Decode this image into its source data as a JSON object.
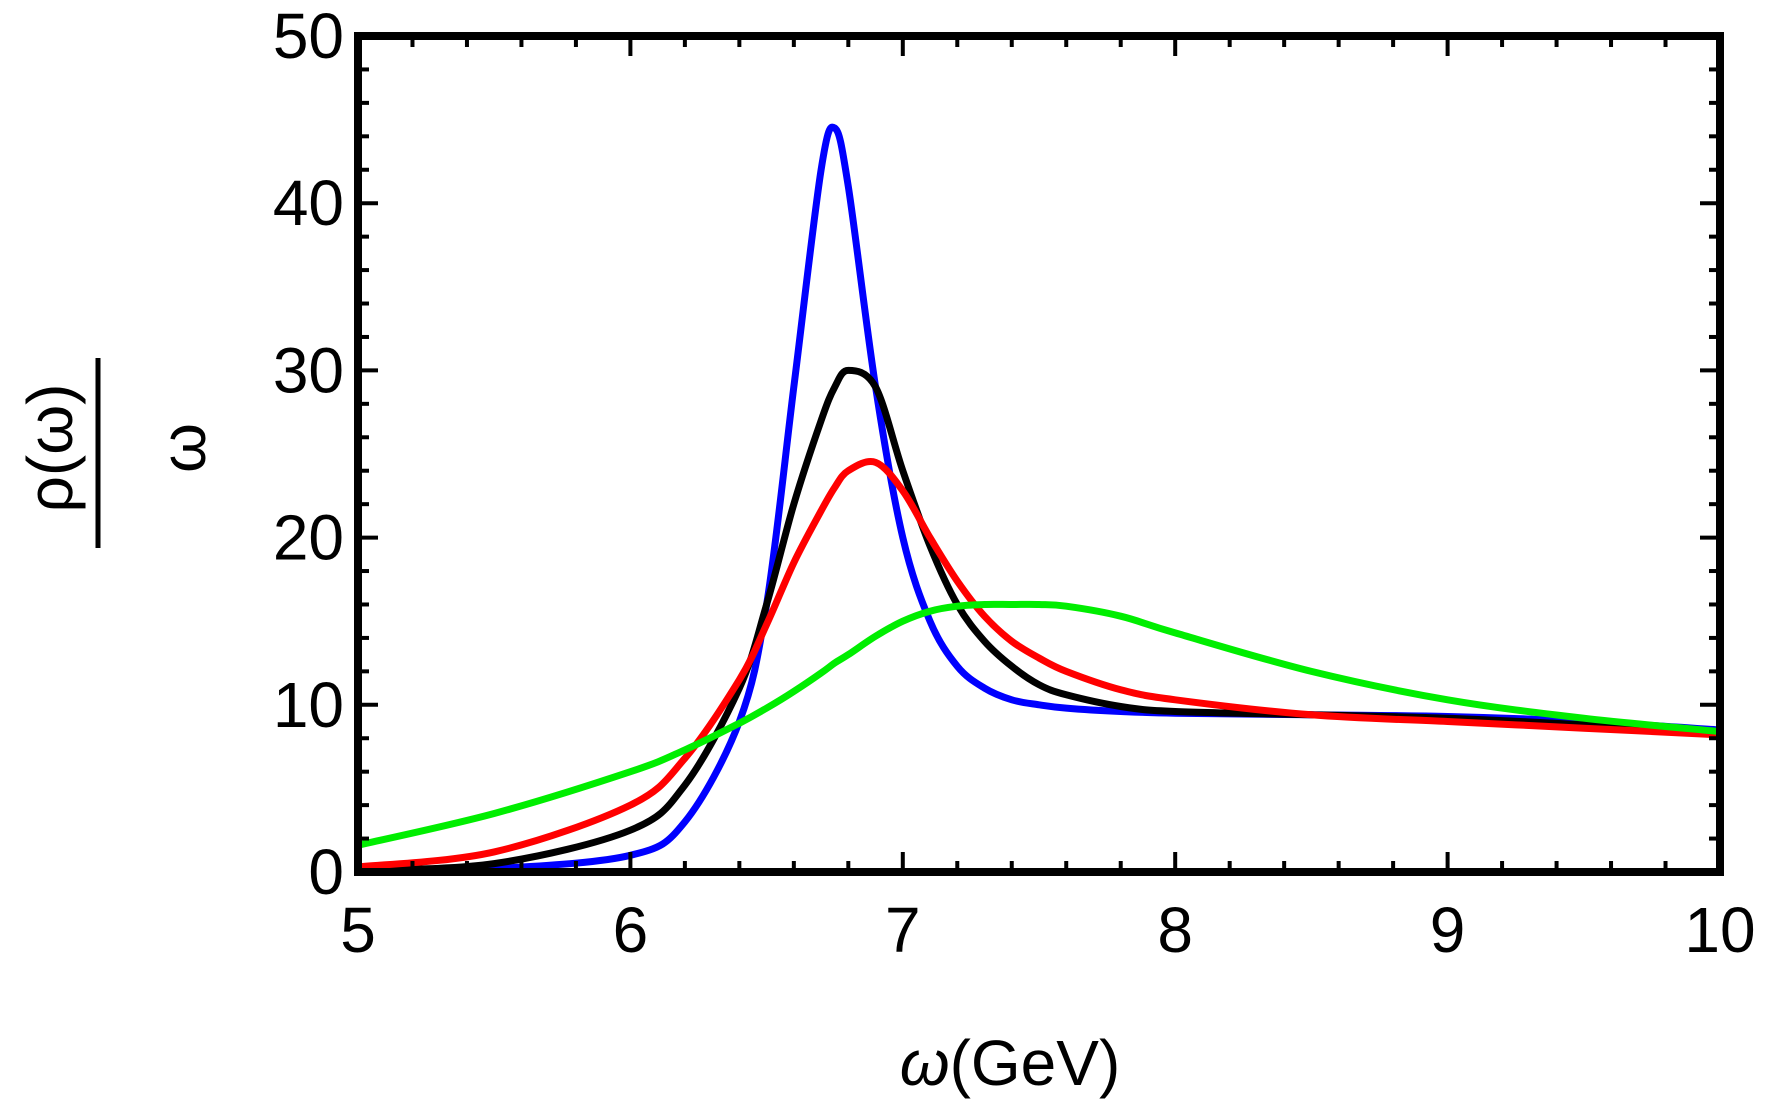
{
  "chart_data": {
    "type": "line",
    "title": "",
    "xlabel": "ω(GeV)",
    "xlabel_parts": {
      "symbol": "ω",
      "unit": "(GeV)"
    },
    "ylabel": "ρ(ω)/ω",
    "ylabel_parts": {
      "numerator": "ρ(ω)",
      "denominator": "ω"
    },
    "xlim": [
      5,
      10
    ],
    "ylim": [
      0,
      50
    ],
    "xticks": [
      5,
      6,
      7,
      8,
      9,
      10
    ],
    "yticks": [
      0,
      10,
      20,
      30,
      40,
      50
    ],
    "grid": false,
    "legend": "none",
    "x": [
      5.0,
      5.5,
      6.0,
      6.2,
      6.4,
      6.5,
      6.6,
      6.7,
      6.75,
      6.8,
      6.9,
      7.0,
      7.1,
      7.2,
      7.3,
      7.4,
      7.5,
      7.6,
      7.8,
      8.0,
      8.5,
      9.0,
      9.5,
      10.0
    ],
    "series": [
      {
        "color": "#0000ff",
        "values": [
          0.0,
          0.2,
          1.0,
          3.0,
          9.0,
          16.0,
          29.0,
          42.0,
          44.5,
          41.0,
          29.0,
          20.0,
          15.0,
          12.3,
          11.0,
          10.3,
          10.0,
          9.8,
          9.6,
          9.5,
          9.4,
          9.3,
          9.0,
          8.5
        ]
      },
      {
        "color": "#000000",
        "values": [
          0.1,
          0.5,
          2.5,
          5.2,
          11.0,
          16.0,
          22.0,
          27.0,
          29.0,
          30.0,
          29.0,
          24.0,
          19.5,
          16.0,
          13.8,
          12.3,
          11.2,
          10.6,
          9.9,
          9.6,
          9.4,
          9.2,
          8.8,
          8.3
        ]
      },
      {
        "color": "#ff0000",
        "values": [
          0.3,
          1.2,
          4.0,
          6.8,
          11.5,
          14.8,
          18.5,
          21.6,
          23.0,
          24.0,
          24.5,
          22.8,
          20.0,
          17.4,
          15.3,
          13.8,
          12.8,
          12.0,
          10.9,
          10.3,
          9.4,
          9.0,
          8.6,
          8.2
        ]
      },
      {
        "color": "#00ee00",
        "values": [
          1.6,
          3.5,
          6.0,
          7.3,
          8.9,
          9.8,
          10.8,
          11.9,
          12.5,
          13.0,
          14.1,
          15.0,
          15.6,
          15.9,
          16.0,
          16.0,
          16.0,
          15.9,
          15.3,
          14.3,
          12.0,
          10.3,
          9.2,
          8.4
        ]
      }
    ]
  }
}
